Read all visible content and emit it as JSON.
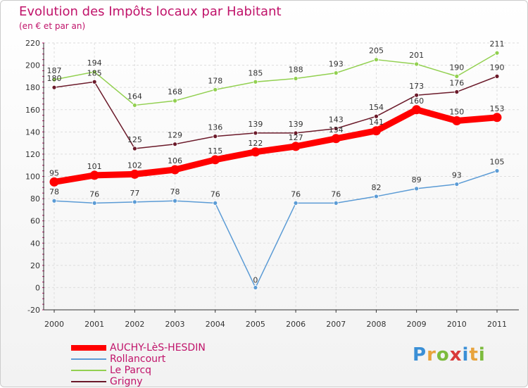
{
  "chart_data": {
    "type": "line",
    "title": "Evolution des Impôts locaux par Habitant",
    "subtitle": "(en € et par an)",
    "xlabel": "",
    "ylabel": "",
    "x": [
      "2000",
      "2001",
      "2002",
      "2003",
      "2004",
      "2005",
      "2006",
      "2007",
      "2008",
      "2009",
      "2010",
      "2011"
    ],
    "ylim": [
      -20,
      220
    ],
    "yticks": [
      -20,
      0,
      20,
      40,
      60,
      80,
      100,
      120,
      140,
      160,
      180,
      200,
      220
    ],
    "grid": true,
    "legend_position": "bottom-left",
    "series": [
      {
        "name": "AUCHY-LèS-HESDIN",
        "color": "#ff0000",
        "emphasis": true,
        "values": [
          95,
          101,
          102,
          106,
          115,
          122,
          127,
          134,
          141,
          160,
          150,
          153
        ]
      },
      {
        "name": "Rollancourt",
        "color": "#5b9bd5",
        "emphasis": false,
        "values": [
          78,
          76,
          77,
          78,
          76,
          0,
          76,
          76,
          82,
          89,
          93,
          105
        ]
      },
      {
        "name": "Le Parcq",
        "color": "#92d050",
        "emphasis": false,
        "values": [
          187,
          194,
          164,
          168,
          178,
          185,
          188,
          193,
          205,
          201,
          190,
          211
        ]
      },
      {
        "name": "Grigny",
        "color": "#6b1a2a",
        "emphasis": false,
        "values": [
          180,
          185,
          125,
          129,
          136,
          139,
          139,
          143,
          154,
          173,
          176,
          190
        ]
      }
    ]
  },
  "brand": {
    "letters": [
      "P",
      "r",
      "o",
      "x",
      "i",
      "t",
      "i"
    ],
    "colors": [
      "#3a8fd6",
      "#e8a33c",
      "#7cbb3c",
      "#d93a3a",
      "#3a8fd6",
      "#e8a33c",
      "#7cbb3c"
    ]
  }
}
